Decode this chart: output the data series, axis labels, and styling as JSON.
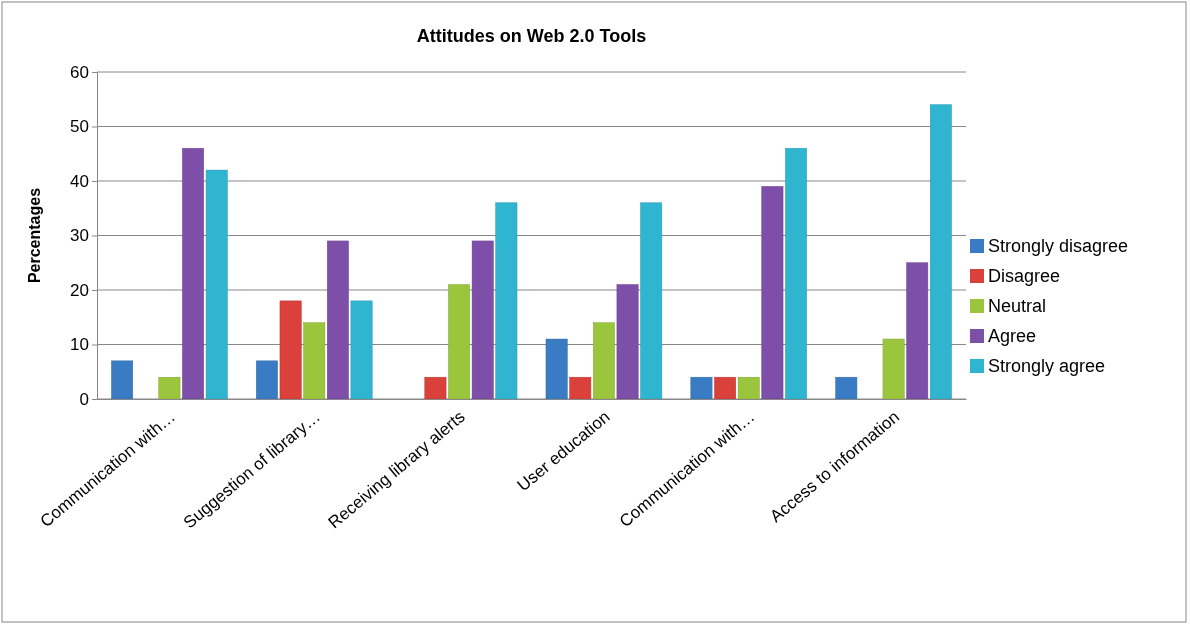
{
  "chart_data": {
    "type": "bar",
    "title": "Attitudes on Web 2.0 Tools",
    "ylabel": "Percentages",
    "categories": [
      "Communication with…",
      "Suggestion of library…",
      "Receiving library alerts",
      "User education",
      "Communication with…",
      "Access to information"
    ],
    "series": [
      {
        "name": "Strongly disagree",
        "color": "#3a7cc4",
        "values": [
          7,
          7,
          0,
          11,
          4,
          4
        ]
      },
      {
        "name": "Disagree",
        "color": "#d9413a",
        "values": [
          0,
          18,
          4,
          4,
          4,
          0
        ]
      },
      {
        "name": "Neutral",
        "color": "#9bc53d",
        "values": [
          4,
          14,
          21,
          14,
          4,
          11
        ]
      },
      {
        "name": "Agree",
        "color": "#7e4fa8",
        "values": [
          46,
          29,
          29,
          21,
          39,
          25
        ]
      },
      {
        "name": "Strongly agree",
        "color": "#2fb5cf",
        "values": [
          42,
          18,
          36,
          36,
          46,
          54
        ]
      }
    ],
    "ylim": [
      0,
      60
    ],
    "yticks": [
      0,
      10,
      20,
      30,
      40,
      50,
      60
    ],
    "grid": "y",
    "legend": "right"
  }
}
